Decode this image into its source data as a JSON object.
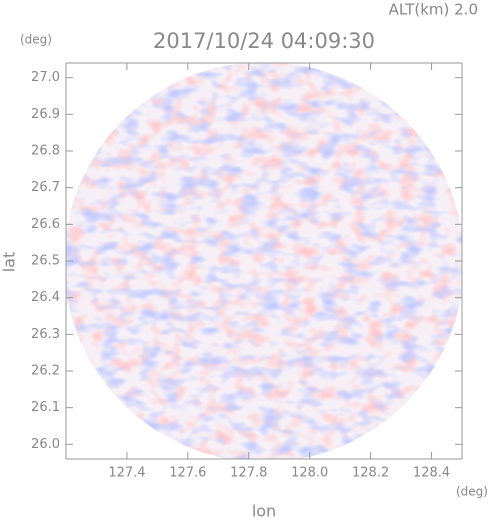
{
  "chart_data": {
    "type": "radar-ppi",
    "title": "2017/10/24 04:09:30",
    "subtitle": "ALT(km) 2.0",
    "x_label": "lon",
    "y_label": "lat",
    "x_unit": "(deg)",
    "y_unit": "(deg)",
    "xlim": [
      127.2,
      128.5
    ],
    "ylim": [
      25.96,
      27.04
    ],
    "xticks": [
      127.4,
      127.6,
      127.8,
      {
        "value": 128,
        "label": "128.0"
      },
      128.2,
      128.4
    ],
    "yticks": [
      {
        "value": 26,
        "label": "26.0"
      },
      26.1,
      26.2,
      26.3,
      26.4,
      26.5,
      26.6,
      26.7,
      26.8,
      26.9,
      {
        "value": 27,
        "label": "27.0"
      }
    ]
  }
}
